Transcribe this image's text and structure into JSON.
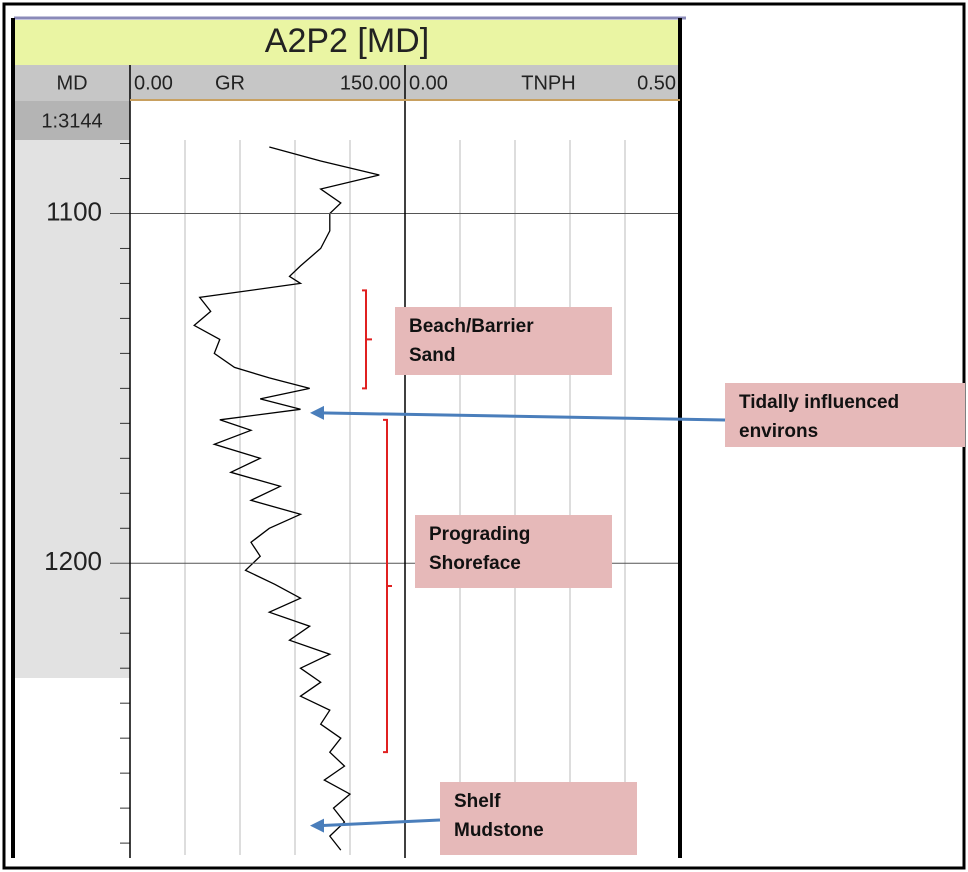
{
  "chart_data": {
    "type": "line",
    "title": "A2P2 [MD]",
    "depth_label": "MD",
    "scale_label": "1:3144",
    "ylim": [
      1079,
      1283.4
    ],
    "yticks": [
      1100,
      1200
    ],
    "yminorticks": [
      1080,
      1090,
      1110,
      1120,
      1130,
      1140,
      1150,
      1160,
      1170,
      1180,
      1190,
      1210,
      1220,
      1230,
      1240,
      1250,
      1260,
      1270,
      1280
    ],
    "series": [
      {
        "name": "GR",
        "color": "#000000",
        "xlim": [
          0,
          150
        ],
        "xticks": [
          {
            "value": 0,
            "label": "0.00"
          },
          {
            "value": 150,
            "label": "150.00"
          }
        ],
        "xgrid": [
          30,
          60,
          90,
          120
        ],
        "y": [
          1081,
          1085,
          1089,
          1093,
          1097,
          1100,
          1105,
          1110,
          1115,
          1118,
          1120,
          1124,
          1128,
          1132,
          1136,
          1140,
          1144,
          1147,
          1150,
          1153,
          1156,
          1159,
          1162,
          1166,
          1170,
          1174,
          1178,
          1182,
          1186,
          1190,
          1194,
          1198,
          1202,
          1206,
          1210,
          1214,
          1218,
          1222,
          1226,
          1230,
          1234,
          1238,
          1242,
          1246,
          1250,
          1254,
          1258,
          1262,
          1266,
          1270,
          1274,
          1278,
          1282
        ],
        "values": [
          76,
          104,
          136,
          104,
          115,
          109,
          109,
          104,
          93,
          87,
          93,
          38,
          44,
          35,
          49,
          46,
          57,
          76,
          98,
          71,
          93,
          49,
          66,
          46,
          71,
          55,
          82,
          66,
          93,
          76,
          66,
          71,
          63,
          79,
          93,
          76,
          98,
          87,
          109,
          93,
          104,
          93,
          109,
          104,
          115,
          109,
          117,
          106,
          120,
          111,
          117,
          109,
          115
        ]
      },
      {
        "name": "TNPH",
        "color": "#000000",
        "xlim": [
          0,
          0.5
        ],
        "xticks": [
          {
            "value": 0,
            "label": "0.00"
          },
          {
            "value": 0.5,
            "label": "0.50"
          }
        ],
        "xgrid": [
          0.1,
          0.2,
          0.3,
          0.4
        ],
        "y": [],
        "values": []
      }
    ],
    "annotations": [
      {
        "lines": [
          "Beach/Barrier",
          "Sand"
        ],
        "top": 1122,
        "bottom": 1150
      },
      {
        "lines": [
          "Tidally influenced",
          "environs"
        ],
        "arrow_to": 1157
      },
      {
        "lines": [
          "Prograding",
          "Shoreface"
        ],
        "top": 1159,
        "bottom": 1254
      },
      {
        "lines": [
          "Shelf",
          "Mudstone"
        ],
        "arrow_to": 1275
      }
    ]
  }
}
